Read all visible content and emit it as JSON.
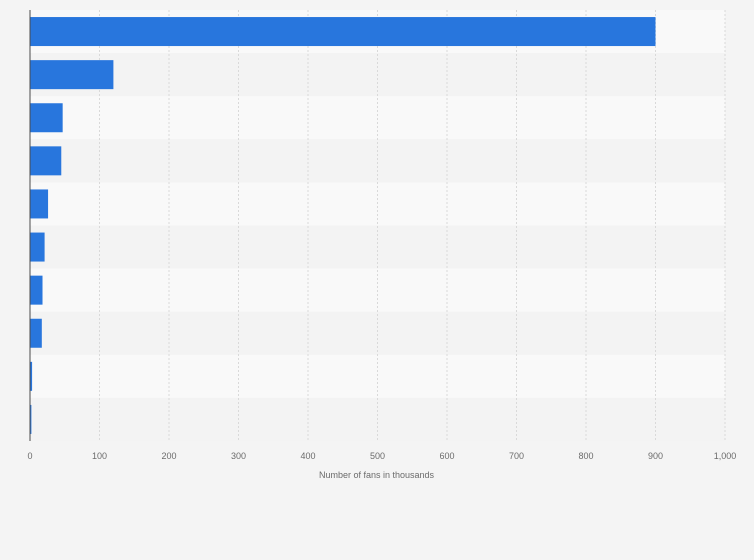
{
  "chart_data": {
    "type": "bar",
    "orientation": "horizontal",
    "title": "",
    "xlabel": "Number of fans in thousands",
    "ylabel": "",
    "categories": [
      "",
      "",
      "",
      "",
      "",
      "",
      "",
      "",
      "",
      ""
    ],
    "values": [
      900,
      120,
      47,
      45,
      26,
      21,
      18,
      17,
      3,
      2
    ],
    "xlim": [
      0,
      1000
    ],
    "x_ticks": [
      0,
      100,
      200,
      300,
      400,
      500,
      600,
      700,
      800,
      900,
      1000
    ],
    "x_tick_labels": [
      "0",
      "100",
      "200",
      "300",
      "400",
      "500",
      "600",
      "700",
      "800",
      "900",
      "1,000"
    ],
    "grid": true,
    "colors": {
      "bar": "#2876dd",
      "band_light": "#f9f9f9",
      "band_dark": "#f3f3f3",
      "gridline": "#d9d9d9",
      "axis": "#4a4a4a",
      "background": "#f4f4f4"
    }
  }
}
